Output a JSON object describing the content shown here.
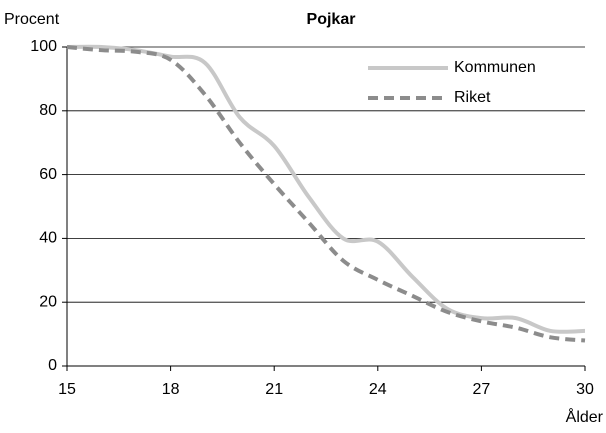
{
  "chart_data": {
    "type": "line",
    "title": "Pojkar",
    "y_label": "Procent",
    "x_label": "Ålder",
    "x": [
      15,
      16,
      17,
      18,
      19,
      20,
      21,
      22,
      23,
      24,
      25,
      26,
      27,
      28,
      29,
      30
    ],
    "series": [
      {
        "name": "Kommunen",
        "color": "#c8c8c8",
        "dashed": false,
        "values": [
          100,
          100,
          99,
          97,
          95,
          78,
          69,
          53,
          40,
          39,
          28,
          18,
          15,
          15,
          11,
          11
        ]
      },
      {
        "name": "Riket",
        "color": "#8c8c8c",
        "dashed": true,
        "values": [
          100,
          99,
          98.5,
          96,
          85,
          70,
          57,
          45,
          33,
          27,
          22,
          17,
          14,
          12,
          9,
          8
        ]
      }
    ],
    "xlim": [
      15,
      30
    ],
    "xticks": [
      15,
      18,
      21,
      24,
      27,
      30
    ],
    "ylim": [
      0,
      100
    ],
    "yticks": [
      0,
      20,
      40,
      60,
      80,
      100
    ],
    "grid": true,
    "legend": "top-right"
  }
}
